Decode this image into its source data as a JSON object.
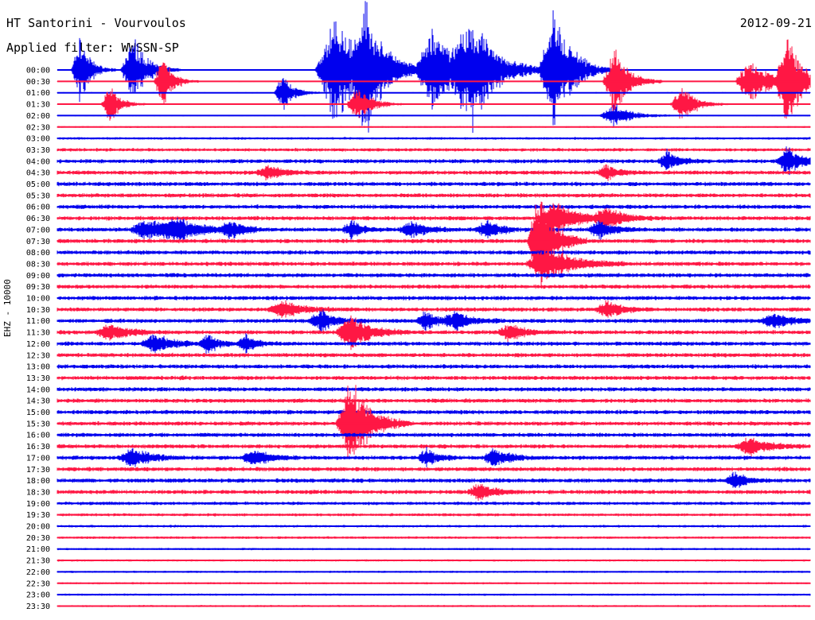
{
  "header": {
    "station": "HT Santorini - Vourvoulos",
    "filter": "Applied filter: WWSSN-SP",
    "date": "2012-09-21",
    "channel": "EHZ - 10000"
  },
  "colors": {
    "odd": "#0000ee",
    "even": "#ff1744"
  },
  "chart_data": {
    "type": "line",
    "title": "HT Santorini - Vourvoulos",
    "subtitle": "Applied filter: WWSSN-SP",
    "date": "2012-09-21",
    "channel": "EHZ - 10000",
    "ylabel": "EHZ - 10000",
    "xlabel": "",
    "grid": false,
    "row_labels": [
      "00:00",
      "00:30",
      "01:00",
      "01:30",
      "02:00",
      "02:30",
      "03:00",
      "03:30",
      "04:00",
      "04:30",
      "05:00",
      "05:30",
      "06:00",
      "06:30",
      "07:00",
      "07:30",
      "08:00",
      "08:30",
      "09:00",
      "09:30",
      "10:00",
      "10:30",
      "11:00",
      "11:30",
      "12:00",
      "12:30",
      "13:00",
      "13:30",
      "14:00",
      "14:30",
      "15:00",
      "15:30",
      "16:00",
      "16:30",
      "17:00",
      "17:30",
      "18:00",
      "18:30",
      "19:00",
      "19:30",
      "20:00",
      "20:30",
      "21:00",
      "21:30",
      "22:00",
      "22:30",
      "23:00",
      "23:30"
    ],
    "row_colors": [
      "blue",
      "red",
      "blue",
      "red",
      "blue",
      "red",
      "blue",
      "red",
      "blue",
      "red",
      "blue",
      "red",
      "blue",
      "red",
      "blue",
      "red",
      "blue",
      "red",
      "blue",
      "red",
      "blue",
      "red",
      "blue",
      "red",
      "blue",
      "red",
      "blue",
      "red",
      "blue",
      "red",
      "blue",
      "red",
      "blue",
      "red",
      "blue",
      "red",
      "blue",
      "red",
      "blue",
      "red",
      "blue",
      "red",
      "blue",
      "red",
      "blue",
      "red",
      "blue",
      "red"
    ],
    "noise_level": [
      0.3,
      0.3,
      0.3,
      0.3,
      0.3,
      0.4,
      0.6,
      0.8,
      1.0,
      1.0,
      1.0,
      1.0,
      1.0,
      1.0,
      1.0,
      1.0,
      1.0,
      1.0,
      1.0,
      1.0,
      1.0,
      1.0,
      1.0,
      1.0,
      1.0,
      1.0,
      1.0,
      1.0,
      1.0,
      1.0,
      1.0,
      1.0,
      1.0,
      1.0,
      1.0,
      1.0,
      1.0,
      1.0,
      0.8,
      0.7,
      0.6,
      0.6,
      0.5,
      0.5,
      0.5,
      0.5,
      0.5,
      0.5
    ],
    "events": [
      {
        "row": 0,
        "t": 0.03,
        "amp": 3.5,
        "dur": 0.03
      },
      {
        "row": 0,
        "t": 0.1,
        "amp": 4,
        "dur": 0.04
      },
      {
        "row": 0,
        "t": 0.37,
        "amp": 6,
        "dur": 0.07
      },
      {
        "row": 0,
        "t": 0.41,
        "amp": 6,
        "dur": 0.05
      },
      {
        "row": 0,
        "t": 0.5,
        "amp": 5,
        "dur": 0.06
      },
      {
        "row": 0,
        "t": 0.55,
        "amp": 6,
        "dur": 0.07
      },
      {
        "row": 0,
        "t": 0.66,
        "amp": 7,
        "dur": 0.05
      },
      {
        "row": 1,
        "t": 0.14,
        "amp": 3,
        "dur": 0.03
      },
      {
        "row": 1,
        "t": 0.74,
        "amp": 4,
        "dur": 0.04
      },
      {
        "row": 1,
        "t": 0.92,
        "amp": 3,
        "dur": 0.05
      },
      {
        "row": 1,
        "t": 0.97,
        "amp": 5,
        "dur": 0.04
      },
      {
        "row": 2,
        "t": 0.3,
        "amp": 2,
        "dur": 0.03
      },
      {
        "row": 3,
        "t": 0.07,
        "amp": 2,
        "dur": 0.03
      },
      {
        "row": 3,
        "t": 0.4,
        "amp": 2,
        "dur": 0.04
      },
      {
        "row": 3,
        "t": 0.83,
        "amp": 2,
        "dur": 0.04
      },
      {
        "row": 4,
        "t": 0.74,
        "amp": 1.3,
        "dur": 0.05
      },
      {
        "row": 8,
        "t": 0.81,
        "amp": 1.2,
        "dur": 0.03
      },
      {
        "row": 8,
        "t": 0.97,
        "amp": 1.5,
        "dur": 0.04
      },
      {
        "row": 9,
        "t": 0.28,
        "amp": 0.8,
        "dur": 0.04
      },
      {
        "row": 9,
        "t": 0.73,
        "amp": 1,
        "dur": 0.03
      },
      {
        "row": 13,
        "t": 0.66,
        "amp": 2,
        "dur": 0.06
      },
      {
        "row": 13,
        "t": 0.73,
        "amp": 1.2,
        "dur": 0.05
      },
      {
        "row": 14,
        "t": 0.12,
        "amp": 1.2,
        "dur": 0.06
      },
      {
        "row": 14,
        "t": 0.16,
        "amp": 1.2,
        "dur": 0.06
      },
      {
        "row": 14,
        "t": 0.23,
        "amp": 1,
        "dur": 0.04
      },
      {
        "row": 14,
        "t": 0.39,
        "amp": 1,
        "dur": 0.03
      },
      {
        "row": 14,
        "t": 0.47,
        "amp": 1,
        "dur": 0.04
      },
      {
        "row": 14,
        "t": 0.57,
        "amp": 1,
        "dur": 0.04
      },
      {
        "row": 14,
        "t": 0.72,
        "amp": 1,
        "dur": 0.04
      },
      {
        "row": 15,
        "t": 0.64,
        "amp": 6,
        "dur": 0.04
      },
      {
        "row": 17,
        "t": 0.65,
        "amp": 2,
        "dur": 0.07
      },
      {
        "row": 21,
        "t": 0.3,
        "amp": 1,
        "dur": 0.05
      },
      {
        "row": 21,
        "t": 0.73,
        "amp": 1,
        "dur": 0.04
      },
      {
        "row": 22,
        "t": 0.35,
        "amp": 1.2,
        "dur": 0.04
      },
      {
        "row": 22,
        "t": 0.49,
        "amp": 1,
        "dur": 0.04
      },
      {
        "row": 22,
        "t": 0.53,
        "amp": 1,
        "dur": 0.04
      },
      {
        "row": 22,
        "t": 0.95,
        "amp": 1,
        "dur": 0.04
      },
      {
        "row": 23,
        "t": 0.07,
        "amp": 1,
        "dur": 0.05
      },
      {
        "row": 23,
        "t": 0.39,
        "amp": 2,
        "dur": 0.05
      },
      {
        "row": 23,
        "t": 0.6,
        "amp": 1,
        "dur": 0.04
      },
      {
        "row": 24,
        "t": 0.13,
        "amp": 1.1,
        "dur": 0.05
      },
      {
        "row": 24,
        "t": 0.2,
        "amp": 1,
        "dur": 0.03
      },
      {
        "row": 24,
        "t": 0.25,
        "amp": 1,
        "dur": 0.03
      },
      {
        "row": 31,
        "t": 0.39,
        "amp": 5,
        "dur": 0.05
      },
      {
        "row": 33,
        "t": 0.92,
        "amp": 1,
        "dur": 0.05
      },
      {
        "row": 34,
        "t": 0.1,
        "amp": 1.1,
        "dur": 0.05
      },
      {
        "row": 34,
        "t": 0.26,
        "amp": 1,
        "dur": 0.04
      },
      {
        "row": 34,
        "t": 0.49,
        "amp": 1,
        "dur": 0.03
      },
      {
        "row": 34,
        "t": 0.58,
        "amp": 1,
        "dur": 0.04
      },
      {
        "row": 36,
        "t": 0.9,
        "amp": 1,
        "dur": 0.03
      },
      {
        "row": 37,
        "t": 0.56,
        "amp": 1,
        "dur": 0.04
      }
    ]
  }
}
